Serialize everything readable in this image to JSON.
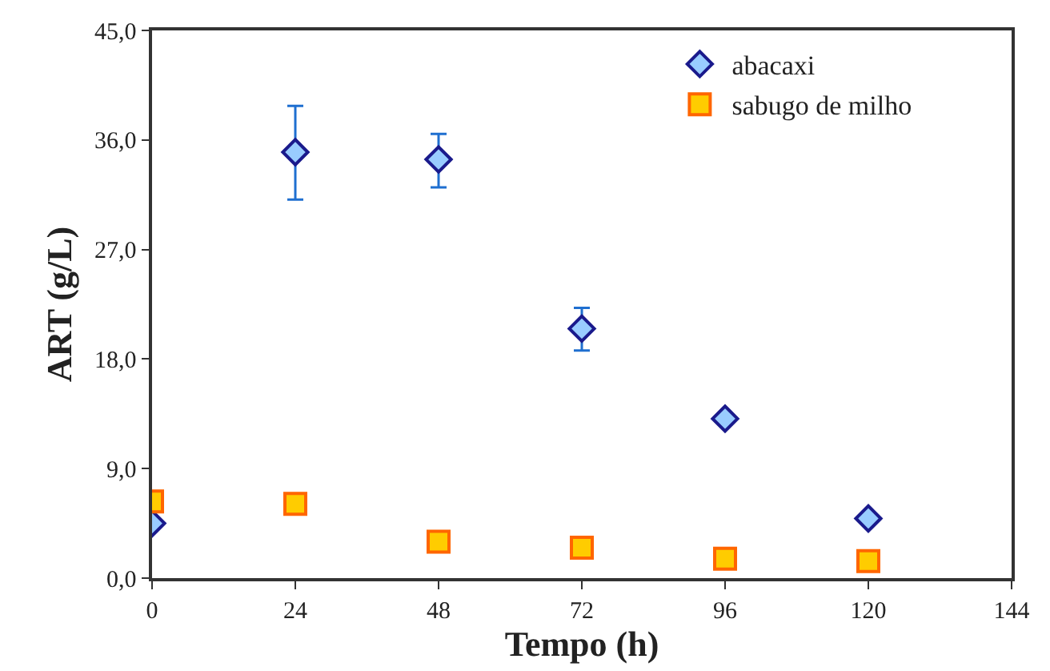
{
  "chart_data": {
    "type": "scatter",
    "xlabel": "Tempo (h)",
    "ylabel": "ART (g/L)",
    "x": [
      0,
      24,
      48,
      72,
      96,
      120
    ],
    "series": [
      {
        "name": "abacaxi",
        "color": "#99ccff",
        "marker": "diamond",
        "values": [
          4.5,
          35.0,
          34.4,
          20.5,
          13.1,
          4.9
        ],
        "errors": [
          null,
          [
            31.1,
            38.8
          ],
          [
            32.1,
            36.5
          ],
          [
            18.7,
            22.2
          ],
          null,
          null
        ]
      },
      {
        "name": "sabugo de milho",
        "color": "#ffcc00",
        "marker": "square",
        "values": [
          6.3,
          6.1,
          3.0,
          2.5,
          1.6,
          1.4
        ]
      }
    ],
    "xlim": [
      0,
      144
    ],
    "xticks": [
      0,
      24,
      48,
      72,
      96,
      120,
      144
    ],
    "ylim": [
      0,
      45
    ],
    "yticks": [
      {
        "value": 0,
        "label": "0,0"
      },
      {
        "value": 9,
        "label": "9,0"
      },
      {
        "value": 18,
        "label": "18,0"
      },
      {
        "value": 27,
        "label": "27,0"
      },
      {
        "value": 36,
        "label": "36,0"
      },
      {
        "value": 45,
        "label": "45,0"
      }
    ],
    "legend": "top right"
  }
}
